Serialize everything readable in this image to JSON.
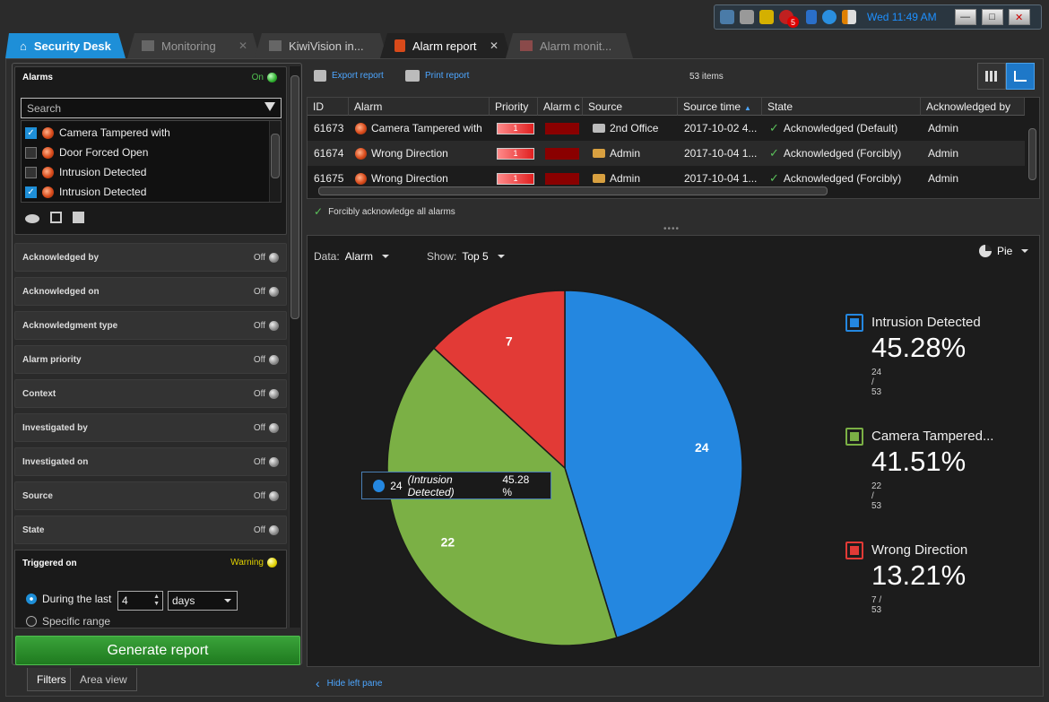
{
  "tray": {
    "clock": "Wed 11:49 AM",
    "alert_count": "5"
  },
  "tabs": [
    {
      "label": "Security Desk"
    },
    {
      "label": "Monitoring"
    },
    {
      "label": "KiwiVision in..."
    },
    {
      "label": "Alarm report"
    },
    {
      "label": "Alarm monit..."
    }
  ],
  "filters": {
    "alarms": {
      "title": "Alarms",
      "state": "On",
      "search_placeholder": "Search",
      "items": [
        {
          "label": "Camera Tampered with",
          "checked": true
        },
        {
          "label": "Door Forced Open",
          "checked": false
        },
        {
          "label": "Intrusion Detected",
          "checked": false
        },
        {
          "label": "Intrusion Detected",
          "checked": true
        }
      ]
    },
    "panels": [
      {
        "label": "Acknowledged by",
        "state": "Off"
      },
      {
        "label": "Acknowledged on",
        "state": "Off"
      },
      {
        "label": "Acknowledgment type",
        "state": "Off"
      },
      {
        "label": "Alarm priority",
        "state": "Off"
      },
      {
        "label": "Context",
        "state": "Off"
      },
      {
        "label": "Investigated by",
        "state": "Off"
      },
      {
        "label": "Investigated on",
        "state": "Off"
      },
      {
        "label": "Source",
        "state": "Off"
      },
      {
        "label": "State",
        "state": "Off"
      }
    ],
    "triggered_on": {
      "label": "Triggered on",
      "state": "Warning",
      "during_label": "During the last",
      "during_value": "4",
      "unit": "days",
      "specific_label": "Specific range"
    },
    "generate_label": "Generate report",
    "bottom_tabs": [
      "Filters",
      "Area view"
    ]
  },
  "toolbar": {
    "export_label": "Export report",
    "print_label": "Print report",
    "items_count": "53 items"
  },
  "table": {
    "columns": [
      "ID",
      "Alarm",
      "Priority",
      "Alarm c",
      "Source",
      "Source time",
      "State",
      "Acknowledged by"
    ],
    "rows": [
      {
        "id": "61673",
        "alarm": "Camera Tampered with",
        "priority": "1",
        "source": "2nd Office",
        "time": "2017-10-02 4...",
        "state": "Acknowledged (Default)",
        "ack_by": "Admin"
      },
      {
        "id": "61674",
        "alarm": "Wrong Direction",
        "priority": "1",
        "source": "Admin",
        "time": "2017-10-04 1...",
        "state": "Acknowledged (Forcibly)",
        "ack_by": "Admin"
      },
      {
        "id": "61675",
        "alarm": "Wrong Direction",
        "priority": "1",
        "source": "Admin",
        "time": "2017-10-04 1...",
        "state": "Acknowledged (Forcibly)",
        "ack_by": "Admin"
      }
    ]
  },
  "forcibly_label": "Forcibly acknowledge all alarms",
  "chart_controls": {
    "data_label": "Data:",
    "data_value": "Alarm",
    "show_label": "Show:",
    "show_value": "Top 5",
    "chart_type": "Pie"
  },
  "chart_data": {
    "type": "pie",
    "labels": [
      "Intrusion Detected",
      "Camera Tampered...",
      "Wrong Direction"
    ],
    "values": [
      24,
      22,
      7
    ],
    "percents": [
      "45.28%",
      "41.51%",
      "13.21%"
    ],
    "counts": [
      "24 / 53",
      "22 / 53",
      "7 / 53"
    ],
    "colors": [
      "#2487e0",
      "#7bb045",
      "#e23a36"
    ]
  },
  "tooltip": {
    "count": "24",
    "name": "(Intrusion Detected)",
    "pct": "45.28 %"
  },
  "hide_left_label": "Hide left pane"
}
